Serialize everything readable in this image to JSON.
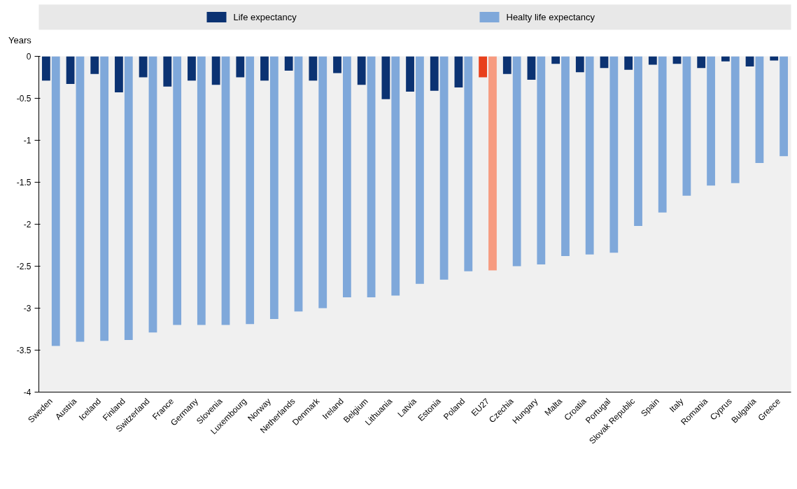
{
  "chart_data": {
    "type": "bar",
    "ylabel": "Years",
    "categories": [
      "Sweden",
      "Austria",
      "Iceland",
      "Finland",
      "Switzerland",
      "France",
      "Germany",
      "Slovenia",
      "Luxembourg",
      "Norway",
      "Netherlands",
      "Denmark",
      "Ireland",
      "Belgium",
      "Lithuania",
      "Latvia",
      "Estonia",
      "Poland",
      "EU27",
      "Czechia",
      "Hungary",
      "Malta",
      "Croatia",
      "Portugal",
      "Slovak Republic",
      "Spain",
      "Italy",
      "Romania",
      "Cyprus",
      "Bulgaria",
      "Greece"
    ],
    "series": [
      {
        "name": "Life expectancy",
        "color": "#0b3272",
        "colors": [
          "#0b3272",
          "#0b3272",
          "#0b3272",
          "#0b3272",
          "#0b3272",
          "#0b3272",
          "#0b3272",
          "#0b3272",
          "#0b3272",
          "#0b3272",
          "#0b3272",
          "#0b3272",
          "#0b3272",
          "#0b3272",
          "#0b3272",
          "#0b3272",
          "#0b3272",
          "#0b3272",
          "#e8401c",
          "#0b3272",
          "#0b3272",
          "#0b3272",
          "#0b3272",
          "#0b3272",
          "#0b3272",
          "#0b3272",
          "#0b3272",
          "#0b3272",
          "#0b3272",
          "#0b3272",
          "#0b3272"
        ],
        "values": [
          -0.29,
          -0.33,
          -0.21,
          -0.43,
          -0.25,
          -0.36,
          -0.29,
          -0.34,
          -0.25,
          -0.29,
          -0.17,
          -0.29,
          -0.2,
          -0.34,
          -0.51,
          -0.42,
          -0.41,
          -0.37,
          -0.25,
          -0.21,
          -0.28,
          -0.09,
          -0.19,
          -0.14,
          -0.16,
          -0.1,
          -0.09,
          -0.14,
          -0.06,
          -0.12,
          -0.05
        ]
      },
      {
        "name": "Healty life expectancy",
        "color": "#7fa8da",
        "colors": [
          "#7fa8da",
          "#7fa8da",
          "#7fa8da",
          "#7fa8da",
          "#7fa8da",
          "#7fa8da",
          "#7fa8da",
          "#7fa8da",
          "#7fa8da",
          "#7fa8da",
          "#7fa8da",
          "#7fa8da",
          "#7fa8da",
          "#7fa8da",
          "#7fa8da",
          "#7fa8da",
          "#7fa8da",
          "#7fa8da",
          "#f79b80",
          "#7fa8da",
          "#7fa8da",
          "#7fa8da",
          "#7fa8da",
          "#7fa8da",
          "#7fa8da",
          "#7fa8da",
          "#7fa8da",
          "#7fa8da",
          "#7fa8da",
          "#7fa8da",
          "#7fa8da"
        ],
        "values": [
          -3.45,
          -3.4,
          -3.39,
          -3.38,
          -3.29,
          -3.2,
          -3.2,
          -3.2,
          -3.19,
          -3.13,
          -3.04,
          -3.0,
          -2.87,
          -2.87,
          -2.85,
          -2.71,
          -2.66,
          -2.56,
          -2.55,
          -2.5,
          -2.48,
          -2.38,
          -2.36,
          -2.34,
          -2.02,
          -1.86,
          -1.66,
          -1.54,
          -1.51,
          -1.27,
          -1.19
        ]
      }
    ],
    "ylim": [
      -4,
      0
    ],
    "yticks": [
      0,
      -0.5,
      -1,
      -1.5,
      -2,
      -2.5,
      -3,
      -3.5,
      -4
    ],
    "legend": "top",
    "grid": false
  }
}
